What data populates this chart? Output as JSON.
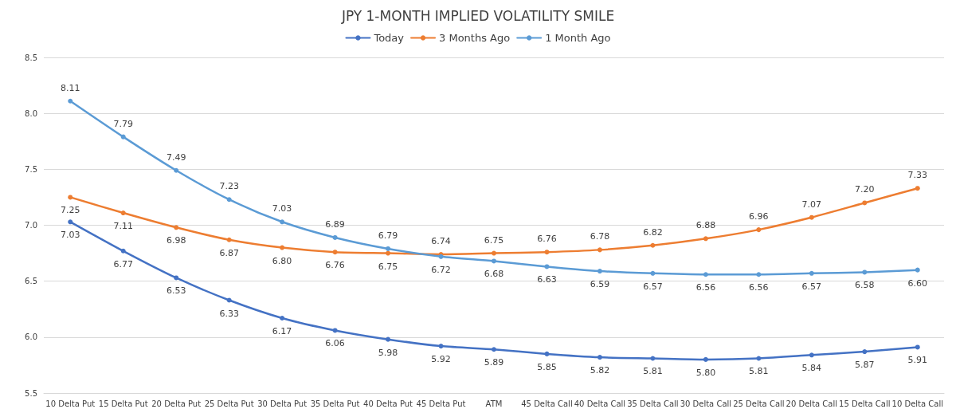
{
  "chart_data": {
    "type": "line",
    "title": "JPY 1-MONTH IMPLIED VOLATILITY SMILE",
    "categories": [
      "10 Delta Put",
      "15 Delta Put",
      "20 Delta Put",
      "25 Delta Put",
      "30 Delta Put",
      "35 Delta Put",
      "40 Delta Put",
      "45 Delta Put",
      "ATM",
      "45 Delta Call",
      "40 Delta Call",
      "35 Delta Call",
      "30 Delta Call",
      "25 Delta Call",
      "20 Delta Call",
      "15 Delta Call",
      "10 Delta Call"
    ],
    "series": [
      {
        "name": "Today",
        "color": "#4472c4",
        "values": [
          7.03,
          6.77,
          6.53,
          6.33,
          6.17,
          6.06,
          5.98,
          5.92,
          5.89,
          5.85,
          5.82,
          5.81,
          5.8,
          5.81,
          5.84,
          5.87,
          5.91
        ],
        "value_labels": [
          "7.03",
          "6.77",
          "6.53",
          "6.33",
          "6.17",
          "6.06",
          "5.98",
          "5.92",
          "5.89",
          "5.85",
          "5.82",
          "5.81",
          "5.80",
          "5.81",
          "5.84",
          "5.87",
          "5.91"
        ]
      },
      {
        "name": "3 Months Ago",
        "color": "#ed7d31",
        "values": [
          7.25,
          7.11,
          6.98,
          6.87,
          6.8,
          6.76,
          6.75,
          6.74,
          6.75,
          6.76,
          6.78,
          6.82,
          6.88,
          6.96,
          7.07,
          7.2,
          7.33
        ],
        "value_labels": [
          "7.25",
          "7.11",
          "6.98",
          "6.87",
          "6.80",
          "6.76",
          "6.75",
          "6.74",
          "6.75",
          "6.76",
          "6.78",
          "6.82",
          "6.88",
          "6.96",
          "7.07",
          "7.20",
          "7.33"
        ]
      },
      {
        "name": "1 Month Ago",
        "color": "#5b9bd5",
        "values": [
          8.11,
          7.79,
          7.49,
          7.23,
          7.03,
          6.89,
          6.79,
          6.72,
          6.68,
          6.63,
          6.59,
          6.57,
          6.56,
          6.56,
          6.57,
          6.58,
          6.6
        ],
        "value_labels": [
          "8.11",
          "7.79",
          "7.49",
          "7.23",
          "7.03",
          "6.89",
          "6.79",
          "6.72",
          "6.68",
          "6.63",
          "6.59",
          "6.57",
          "6.56",
          "6.56",
          "6.57",
          "6.58",
          "6.60"
        ]
      }
    ],
    "ylim": [
      5.5,
      8.5
    ],
    "yticks": [
      5.5,
      {
        "value": 6,
        "label": "6.0"
      },
      6.5,
      {
        "value": 7,
        "label": "7.0"
      },
      7.5,
      {
        "value": 8,
        "label": "8.0"
      },
      8.5
    ],
    "grid": "y",
    "legend": "top",
    "marker": "circle",
    "line_style": "solid"
  }
}
